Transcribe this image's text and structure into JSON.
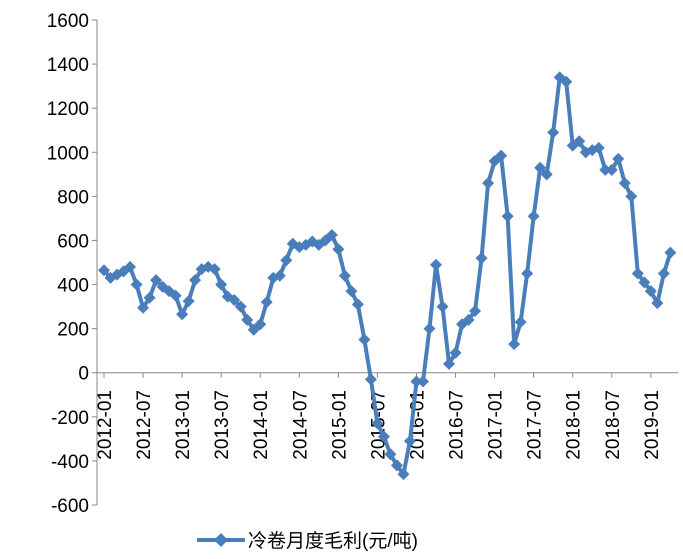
{
  "chart_data": {
    "type": "line",
    "categories": [
      "2012-01",
      null,
      null,
      null,
      null,
      null,
      "2012-07",
      null,
      null,
      null,
      null,
      null,
      "2013-01",
      null,
      null,
      null,
      null,
      null,
      "2013-07",
      null,
      null,
      null,
      null,
      null,
      "2014-01",
      null,
      null,
      null,
      null,
      null,
      "2014-07",
      null,
      null,
      null,
      null,
      null,
      "2015-01",
      null,
      null,
      null,
      null,
      null,
      "2015-07",
      null,
      null,
      null,
      null,
      null,
      "2016-01",
      null,
      null,
      null,
      null,
      null,
      "2016-07",
      null,
      null,
      null,
      null,
      null,
      "2017-01",
      null,
      null,
      null,
      null,
      null,
      "2017-07",
      null,
      null,
      null,
      null,
      null,
      "2018-01",
      null,
      null,
      null,
      null,
      null,
      "2018-07",
      null,
      null,
      null,
      null,
      null,
      "2019-01",
      null,
      null,
      null
    ],
    "series": [
      {
        "name": "冷卷月度毛利(元/吨)",
        "color": "#4a7ebb",
        "values": [
          465,
          430,
          445,
          460,
          480,
          400,
          295,
          340,
          420,
          390,
          370,
          350,
          265,
          325,
          420,
          470,
          480,
          470,
          400,
          345,
          330,
          300,
          240,
          195,
          220,
          320,
          430,
          440,
          510,
          585,
          570,
          580,
          595,
          580,
          600,
          625,
          560,
          440,
          370,
          310,
          150,
          -30,
          -230,
          -290,
          -370,
          -420,
          -460,
          -310,
          -40,
          -40,
          200,
          490,
          300,
          40,
          90,
          220,
          240,
          280,
          520,
          860,
          960,
          985,
          710,
          130,
          230,
          450,
          710,
          930,
          900,
          1090,
          1340,
          1320,
          1030,
          1050,
          1000,
          1010,
          1020,
          920,
          920,
          970,
          860,
          800,
          450,
          410,
          370,
          316,
          450,
          545
        ]
      }
    ],
    "ylim": [
      -600,
      1600
    ],
    "yticks": [
      -600,
      -400,
      -200,
      0,
      200,
      400,
      600,
      800,
      1000,
      1200,
      1400,
      1600
    ],
    "grid": false,
    "legend": "bottom"
  }
}
